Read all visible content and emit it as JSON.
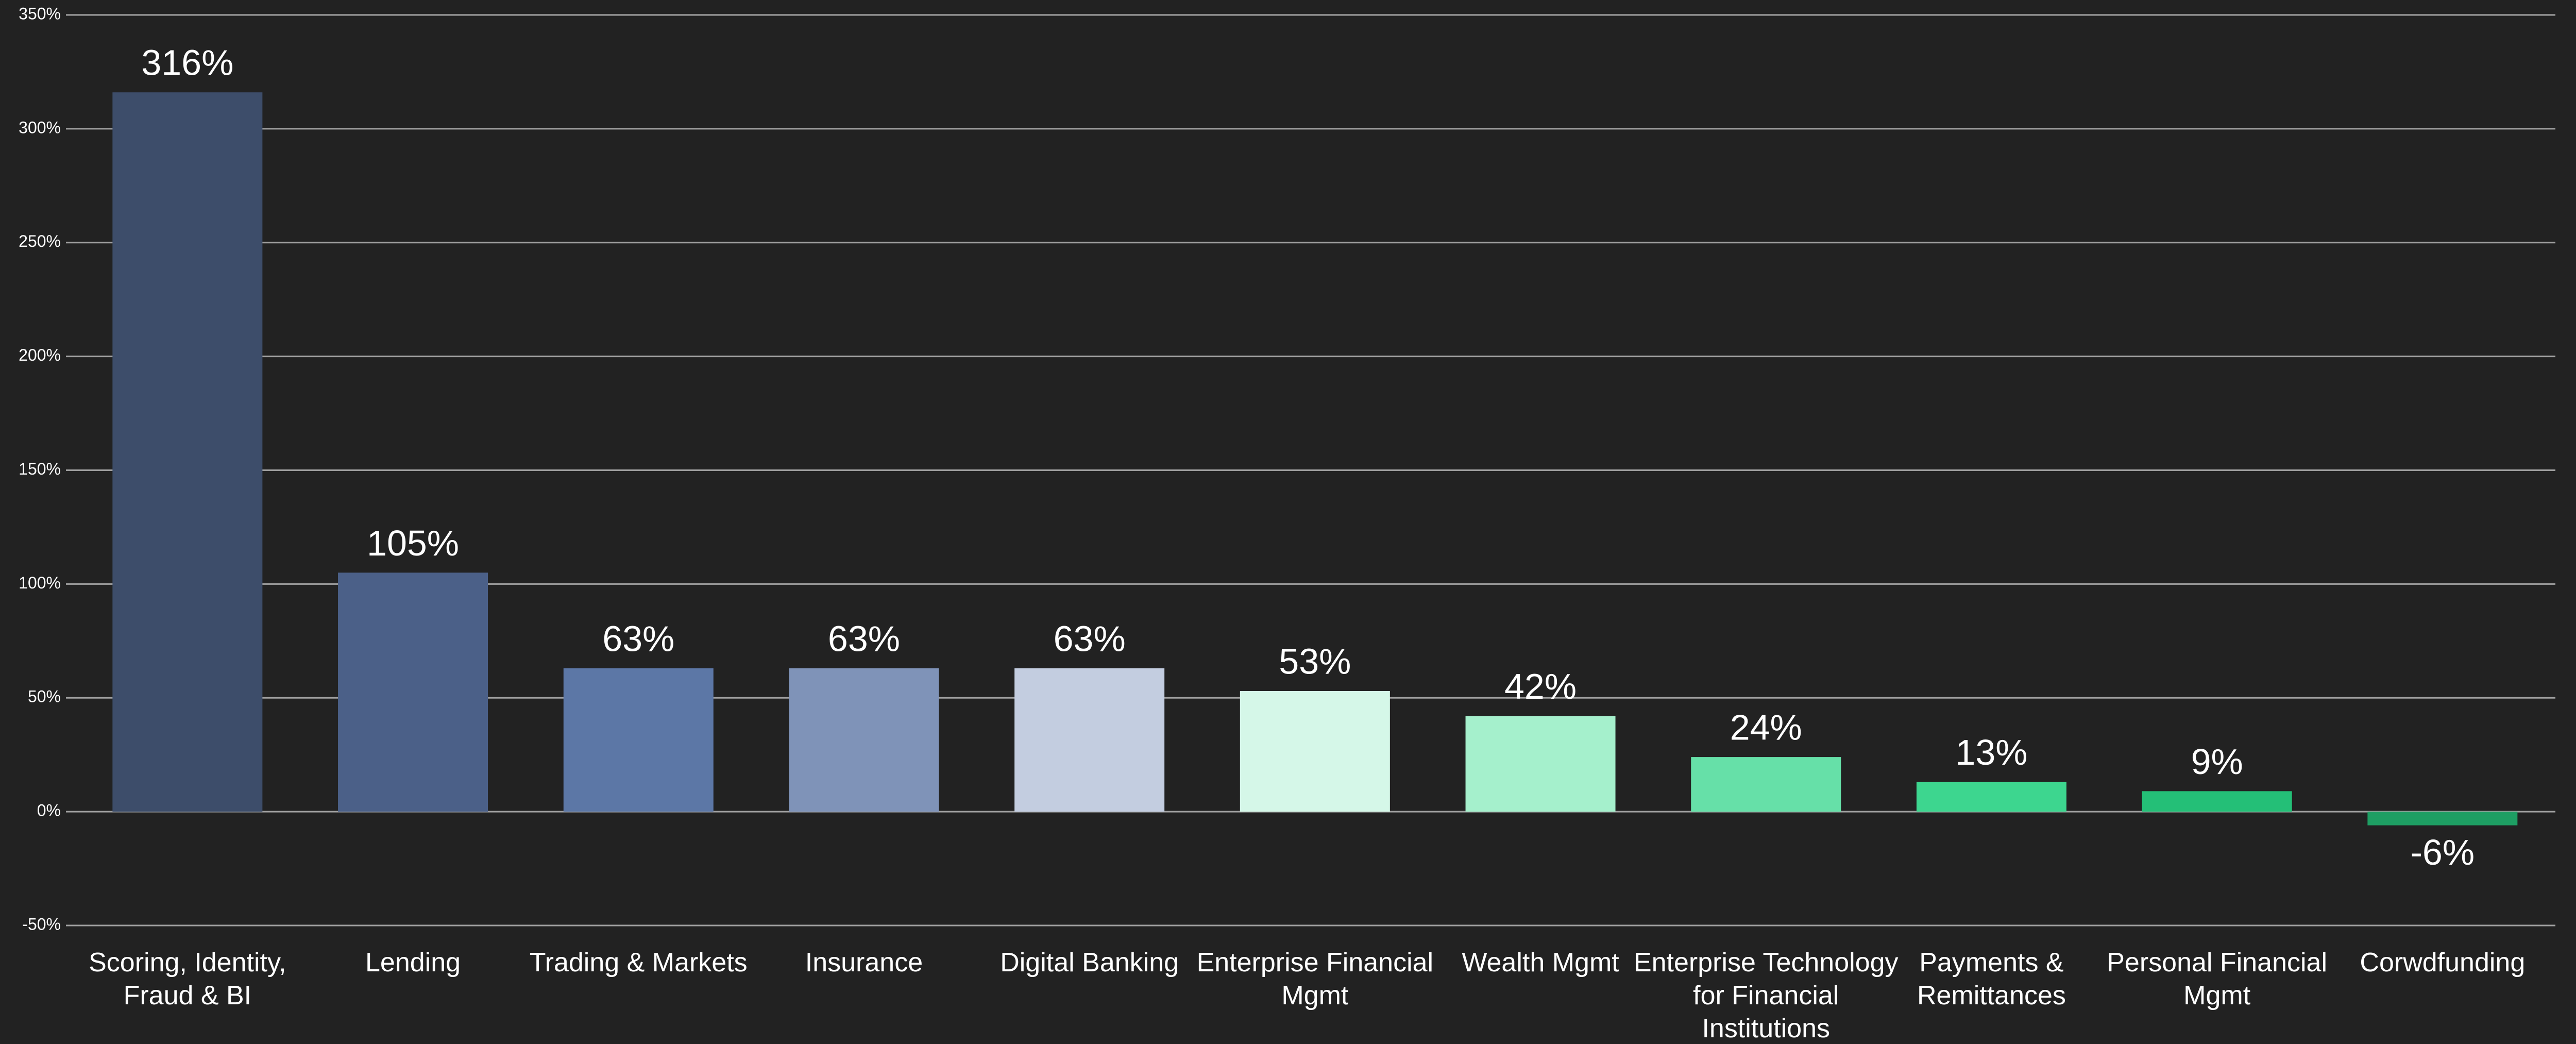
{
  "chart_data": {
    "type": "bar",
    "categories": [
      "Scoring, Identity, Fraud & BI",
      "Lending",
      "Trading & Markets",
      "Insurance",
      "Digital Banking",
      "Enterprise Financial Mgmt",
      "Wealth Mgmt",
      "Enterprise Technology for Financial Institutions",
      "Payments & Remittances",
      "Personal Financial Mgmt",
      "Corwdfunding"
    ],
    "values": [
      316,
      105,
      63,
      63,
      63,
      53,
      42,
      24,
      13,
      9,
      -6
    ],
    "value_labels": [
      "316%",
      "105%",
      "63%",
      "63%",
      "63%",
      "53%",
      "42%",
      "24%",
      "13%",
      "9%",
      "-6%"
    ],
    "colors": [
      "#3d4d6a",
      "#4b6088",
      "#5c77a6",
      "#7f93b8",
      "#c3cde0",
      "#d5f7e8",
      "#a5f0cc",
      "#66e0a8",
      "#3dd68f",
      "#24bf77",
      "#1e9e63"
    ],
    "ylim": [
      -50,
      350
    ],
    "yticks": [
      {
        "value": -50,
        "label": "-50%"
      },
      {
        "value": 0,
        "label": "0%"
      },
      {
        "value": 50,
        "label": "50%"
      },
      {
        "value": 100,
        "label": "100%"
      },
      {
        "value": 150,
        "label": "150%"
      },
      {
        "value": 200,
        "label": "200%"
      },
      {
        "value": 250,
        "label": "250%"
      },
      {
        "value": 300,
        "label": "300%"
      },
      {
        "value": 350,
        "label": "350%"
      }
    ],
    "grid": true
  }
}
